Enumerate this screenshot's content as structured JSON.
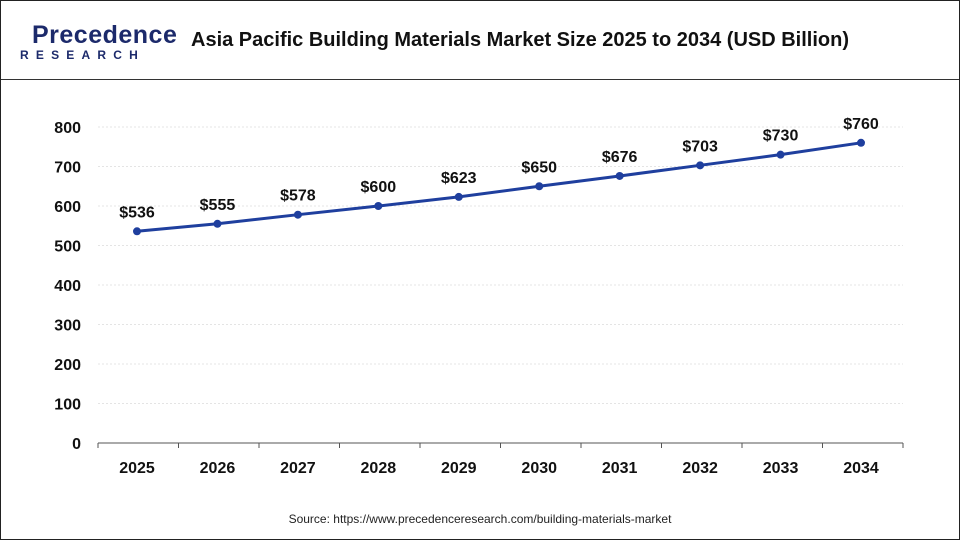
{
  "logo": {
    "line1": "Precedence",
    "line2": "RESEARCH"
  },
  "source": "Source: https://www.precedenceresearch.com/building-materials-market",
  "colors": {
    "line": "#1f3f9e",
    "logo_dark": "#1c2a6b",
    "logo_accent": "#2f5bd0"
  },
  "chart_data": {
    "type": "line",
    "title": "Asia Pacific Building Materials Market Size 2025 to 2034 (USD Billion)",
    "xlabel": "",
    "ylabel": "",
    "categories": [
      "2025",
      "2026",
      "2027",
      "2028",
      "2029",
      "2030",
      "2031",
      "2032",
      "2033",
      "2034"
    ],
    "values": [
      536,
      555,
      578,
      600,
      623,
      650,
      676,
      703,
      730,
      760
    ],
    "data_labels": [
      "$536",
      "$555",
      "$578",
      "$600",
      "$623",
      "$650",
      "$676",
      "$703",
      "$730",
      "$760"
    ],
    "ylim": [
      0,
      800
    ],
    "yticks": [
      0,
      100,
      200,
      300,
      400,
      500,
      600,
      700,
      800
    ],
    "grid": true,
    "legend": "none"
  }
}
